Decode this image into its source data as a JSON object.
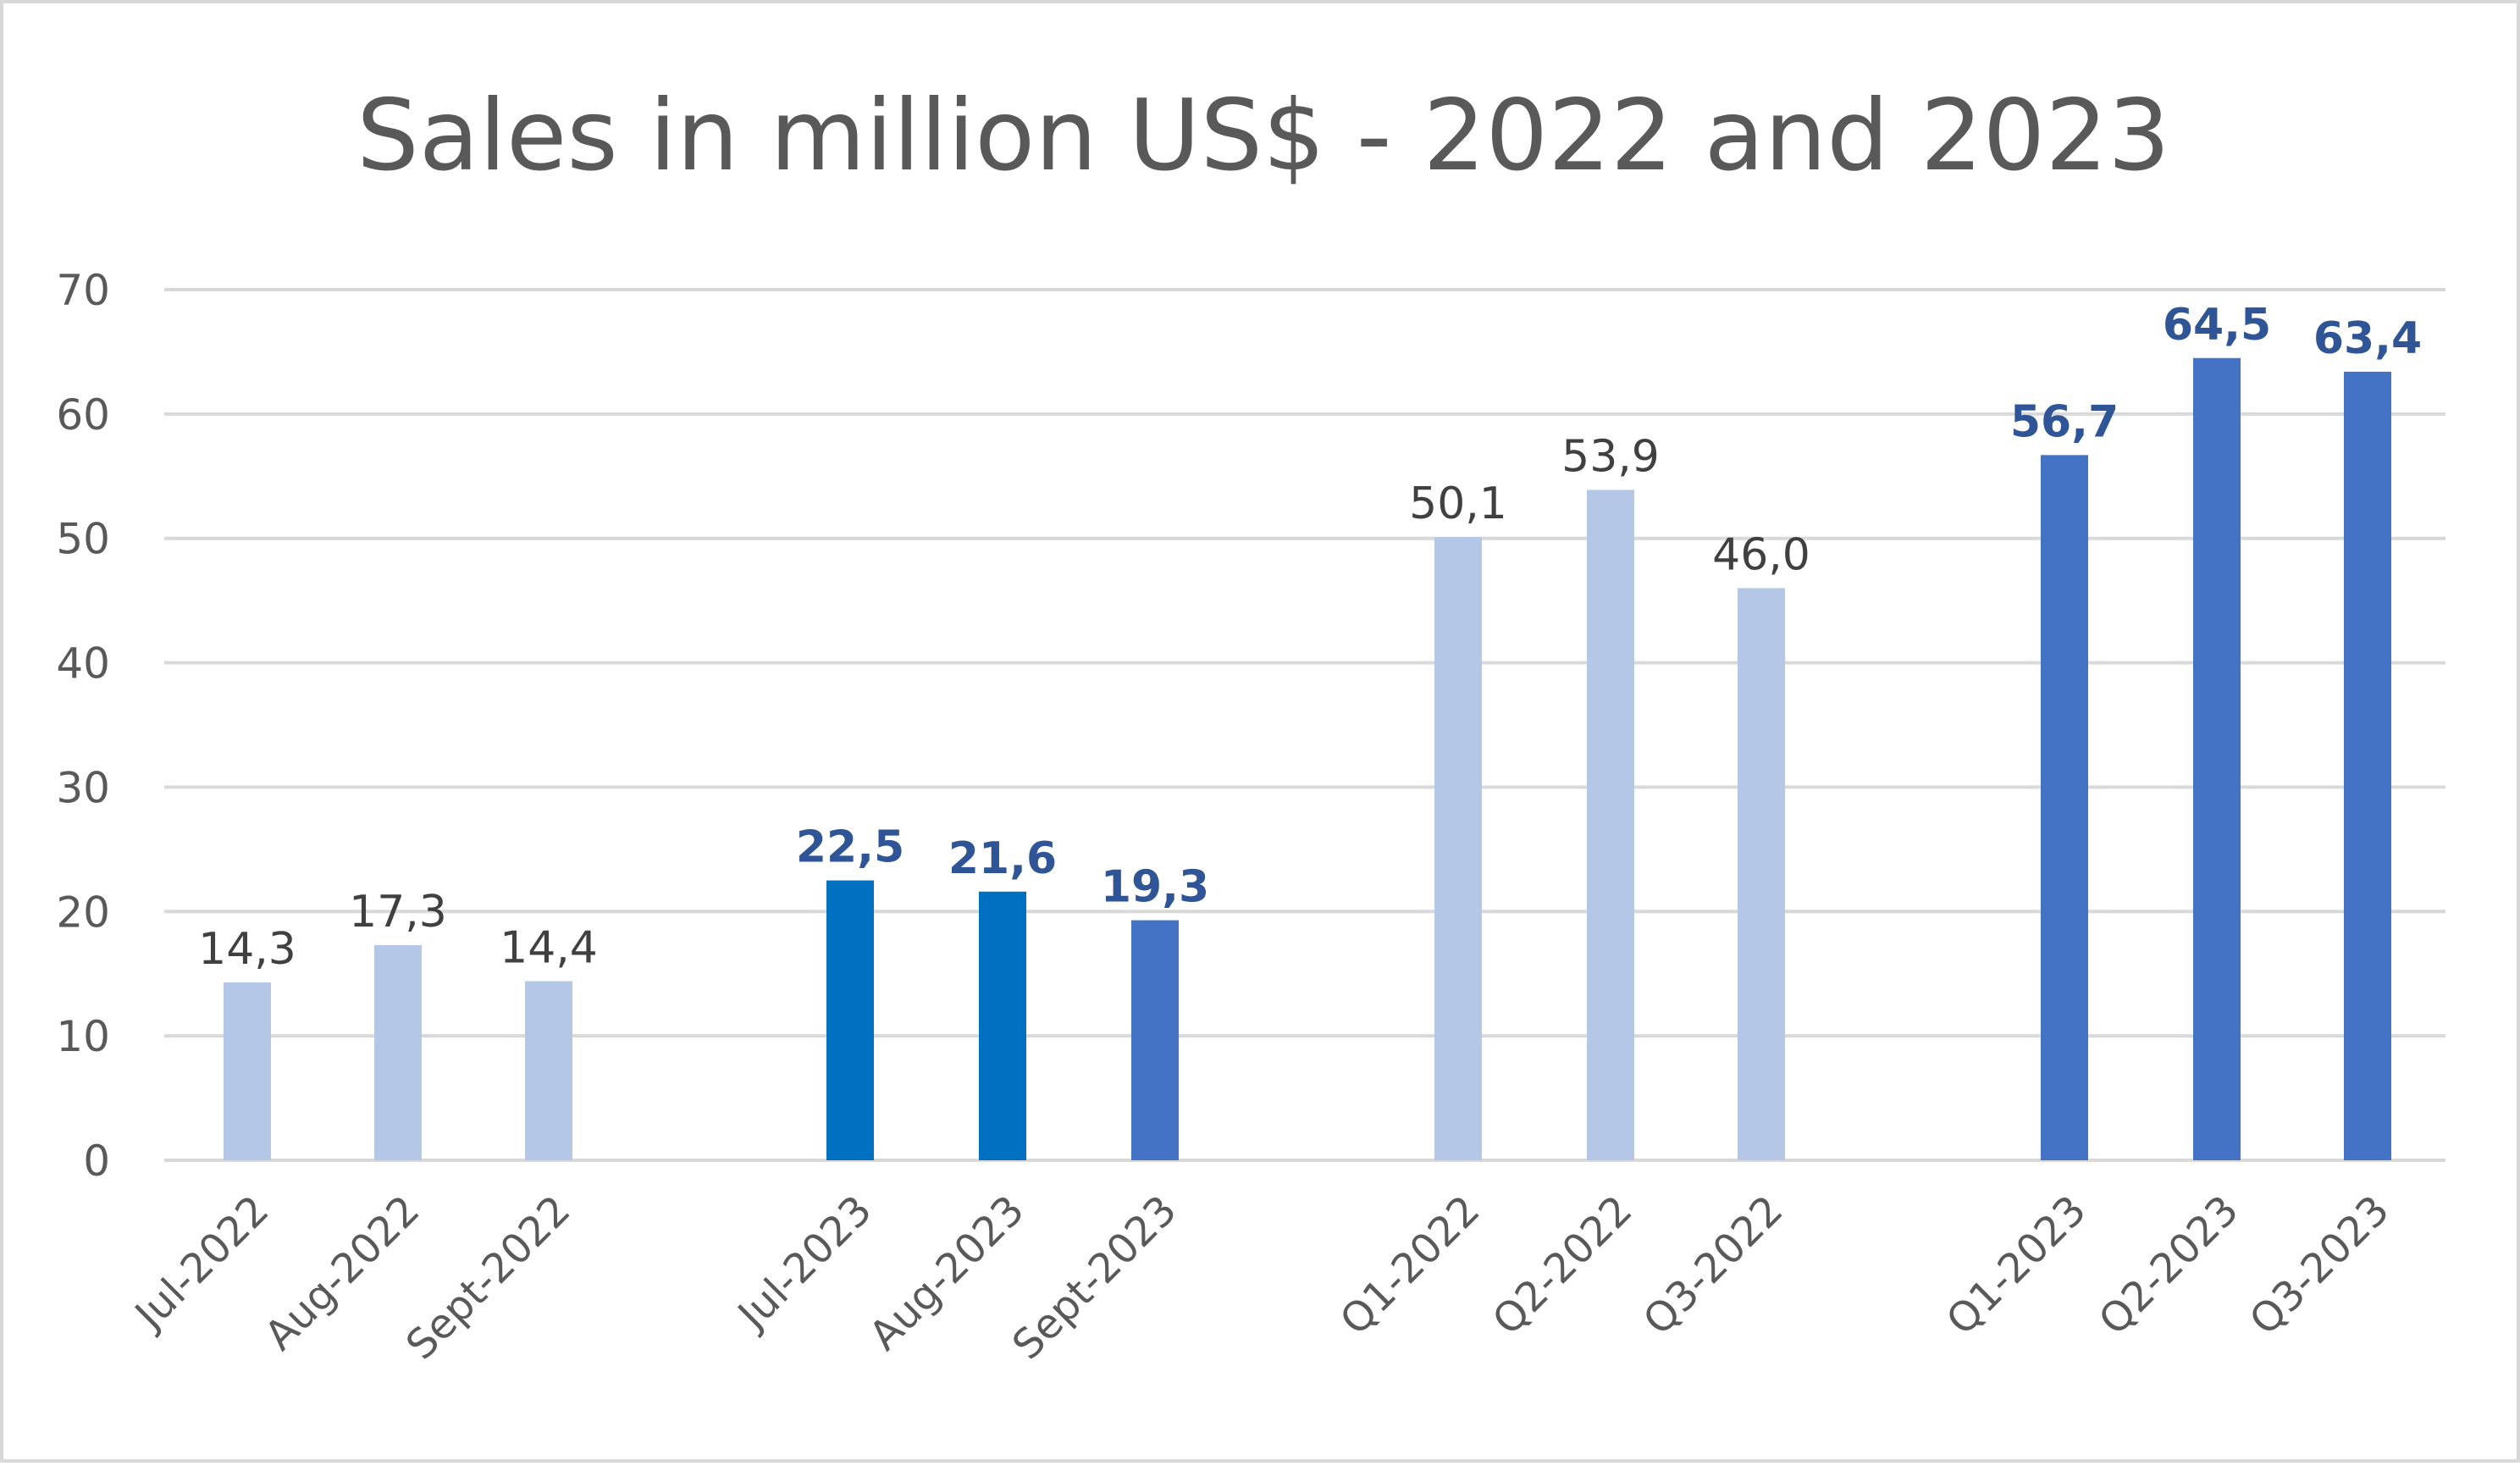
{
  "chart_data": {
    "type": "bar",
    "title": "Sales in million US$ - 2022 and 2023",
    "xlabel": "",
    "ylabel": "",
    "ylim": [
      0,
      70
    ],
    "yticks": [
      "0",
      "10",
      "20",
      "30",
      "40",
      "50",
      "60",
      "70"
    ],
    "grid": true,
    "legend": "none",
    "groups": [
      {
        "name": "monthly-2022",
        "bars": [
          {
            "category": "Jul-2022",
            "value": 14.3,
            "label": "14,3",
            "color": "#b4c7e7",
            "bold": false
          },
          {
            "category": "Aug-2022",
            "value": 17.3,
            "label": "17,3",
            "color": "#b4c7e7",
            "bold": false
          },
          {
            "category": "Sept-2022",
            "value": 14.4,
            "label": "14,4",
            "color": "#b4c7e7",
            "bold": false
          }
        ]
      },
      {
        "name": "monthly-2023",
        "bars": [
          {
            "category": "Jul-2023",
            "value": 22.5,
            "label": "22,5",
            "color": "#0070c0",
            "bold": true
          },
          {
            "category": "Aug-2023",
            "value": 21.6,
            "label": "21,6",
            "color": "#0070c0",
            "bold": true
          },
          {
            "category": "Sept-2023",
            "value": 19.3,
            "label": "19,3",
            "color": "#4472c4",
            "bold": true
          }
        ]
      },
      {
        "name": "quarterly-2022",
        "bars": [
          {
            "category": "Q1-2022",
            "value": 50.1,
            "label": "50,1",
            "color": "#b4c7e7",
            "bold": false
          },
          {
            "category": "Q2-2022",
            "value": 53.9,
            "label": "53,9",
            "color": "#b4c7e7",
            "bold": false
          },
          {
            "category": "Q3-2022",
            "value": 46.0,
            "label": "46,0",
            "color": "#b4c7e7",
            "bold": false
          }
        ]
      },
      {
        "name": "quarterly-2023",
        "bars": [
          {
            "category": "Q1-2023",
            "value": 56.7,
            "label": "56,7",
            "color": "#4472c4",
            "bold": true
          },
          {
            "category": "Q2-2023",
            "value": 64.5,
            "label": "64,5",
            "color": "#4472c4",
            "bold": true
          },
          {
            "category": "Q3-2023",
            "value": 63.4,
            "label": "63,4",
            "color": "#4472c4",
            "bold": true
          }
        ]
      }
    ]
  }
}
